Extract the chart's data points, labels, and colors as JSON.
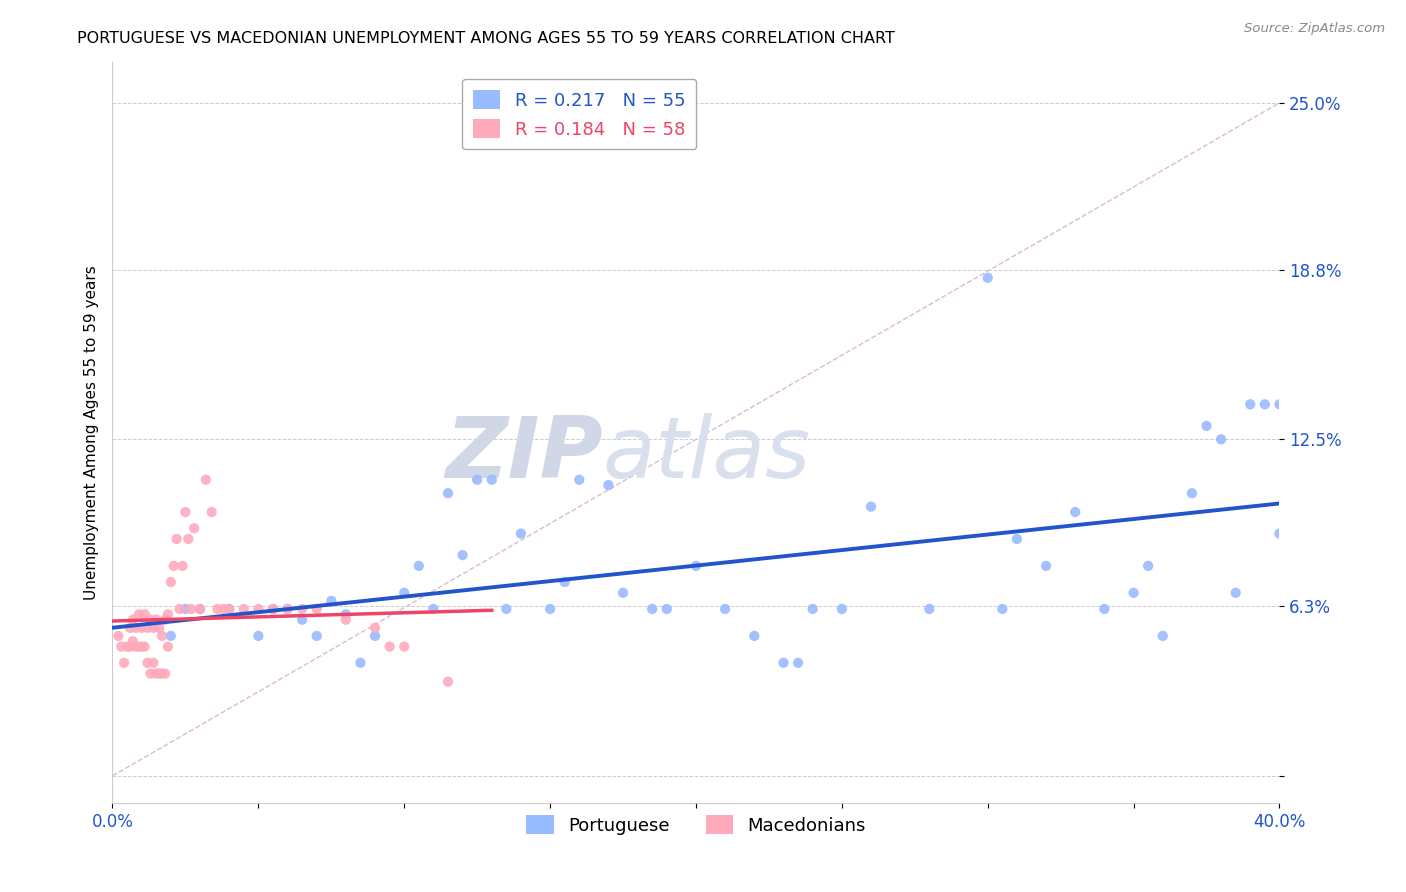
{
  "title": "PORTUGUESE VS MACEDONIAN UNEMPLOYMENT AMONG AGES 55 TO 59 YEARS CORRELATION CHART",
  "source": "Source: ZipAtlas.com",
  "ylabel": "Unemployment Among Ages 55 to 59 years",
  "xlim": [
    0.0,
    0.4
  ],
  "ylim": [
    -0.01,
    0.265
  ],
  "ytick_positions": [
    0.0,
    0.063,
    0.125,
    0.188,
    0.25
  ],
  "ytick_labels": [
    "",
    "6.3%",
    "12.5%",
    "18.8%",
    "25.0%"
  ],
  "portuguese_color": "#99bbff",
  "macedonian_color": "#ffaabb",
  "trendline_portuguese_color": "#2255cc",
  "trendline_macedonian_color": "#ee4466",
  "diagonal_color": "#dddddd",
  "r_portuguese": 0.217,
  "n_portuguese": 55,
  "r_macedonian": 0.184,
  "n_macedonian": 58,
  "watermark_zip": "ZIP",
  "watermark_atlas": "atlas",
  "pt_x": [
    0.02,
    0.025,
    0.03,
    0.04,
    0.05,
    0.055,
    0.06,
    0.065,
    0.07,
    0.075,
    0.08,
    0.085,
    0.09,
    0.1,
    0.105,
    0.11,
    0.115,
    0.12,
    0.125,
    0.13,
    0.135,
    0.14,
    0.15,
    0.155,
    0.16,
    0.17,
    0.175,
    0.185,
    0.19,
    0.2,
    0.21,
    0.22,
    0.23,
    0.235,
    0.24,
    0.25,
    0.26,
    0.28,
    0.3,
    0.305,
    0.31,
    0.32,
    0.33,
    0.34,
    0.35,
    0.355,
    0.36,
    0.37,
    0.375,
    0.38,
    0.385,
    0.39,
    0.395,
    0.4,
    0.4
  ],
  "pt_y": [
    0.052,
    0.062,
    0.062,
    0.062,
    0.052,
    0.062,
    0.062,
    0.058,
    0.052,
    0.065,
    0.06,
    0.042,
    0.052,
    0.068,
    0.078,
    0.062,
    0.105,
    0.082,
    0.11,
    0.11,
    0.062,
    0.09,
    0.062,
    0.072,
    0.11,
    0.108,
    0.068,
    0.062,
    0.062,
    0.078,
    0.062,
    0.052,
    0.042,
    0.042,
    0.062,
    0.062,
    0.1,
    0.062,
    0.185,
    0.062,
    0.088,
    0.078,
    0.098,
    0.062,
    0.068,
    0.078,
    0.052,
    0.105,
    0.13,
    0.125,
    0.068,
    0.138,
    0.138,
    0.09,
    0.138
  ],
  "mk_x": [
    0.002,
    0.003,
    0.004,
    0.005,
    0.006,
    0.006,
    0.007,
    0.007,
    0.008,
    0.008,
    0.009,
    0.009,
    0.01,
    0.01,
    0.011,
    0.011,
    0.012,
    0.012,
    0.013,
    0.013,
    0.014,
    0.014,
    0.015,
    0.015,
    0.016,
    0.016,
    0.017,
    0.017,
    0.018,
    0.018,
    0.019,
    0.019,
    0.02,
    0.021,
    0.022,
    0.023,
    0.024,
    0.025,
    0.026,
    0.027,
    0.028,
    0.03,
    0.032,
    0.034,
    0.036,
    0.038,
    0.04,
    0.045,
    0.05,
    0.055,
    0.06,
    0.065,
    0.07,
    0.08,
    0.09,
    0.095,
    0.1,
    0.115
  ],
  "mk_y": [
    0.052,
    0.048,
    0.042,
    0.048,
    0.048,
    0.055,
    0.058,
    0.05,
    0.055,
    0.048,
    0.06,
    0.048,
    0.055,
    0.048,
    0.06,
    0.048,
    0.055,
    0.042,
    0.058,
    0.038,
    0.055,
    0.042,
    0.058,
    0.038,
    0.055,
    0.038,
    0.052,
    0.038,
    0.058,
    0.038,
    0.06,
    0.048,
    0.072,
    0.078,
    0.088,
    0.062,
    0.078,
    0.098,
    0.088,
    0.062,
    0.092,
    0.062,
    0.11,
    0.098,
    0.062,
    0.062,
    0.062,
    0.062,
    0.062,
    0.062,
    0.062,
    0.062,
    0.062,
    0.058,
    0.055,
    0.048,
    0.048,
    0.035
  ]
}
